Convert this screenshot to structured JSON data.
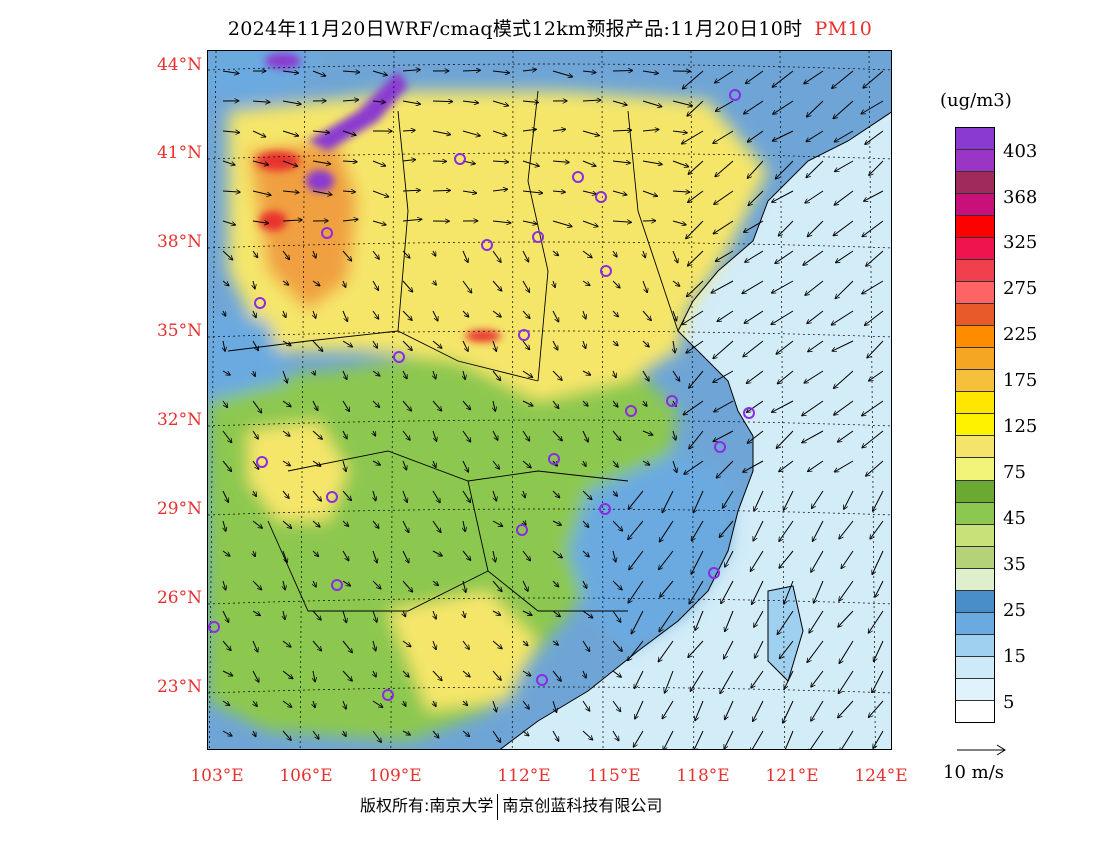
{
  "title": {
    "main": "2024年11月20日WRF/cmaq模式12km预报产品:11月20日10时",
    "pollutant": "PM10"
  },
  "map": {
    "lat_labels": [
      "44°N",
      "41°N",
      "38°N",
      "35°N",
      "32°N",
      "29°N",
      "26°N",
      "23°N"
    ],
    "lon_labels": [
      "103°E",
      "106°E",
      "109°E",
      "112°E",
      "115°E",
      "118°E",
      "121°E",
      "124°E"
    ],
    "colors": {
      "ocean": "#d2ecf8",
      "land_low": "#6fa5d6",
      "land_green": "#8cc850",
      "land_yellow": "#f5e66a",
      "polluted": "#f0a040",
      "severe": "#8a3ad0"
    },
    "station_marker_color": "#8b2be2"
  },
  "colorbar": {
    "unit": "(ug/m3)",
    "colors": [
      "#8a3ad0",
      "#9b35c5",
      "#a02b5a",
      "#c8107a",
      "#ff0000",
      "#f0144e",
      "#f0404e",
      "#ff6464",
      "#e85a2a",
      "#ff8c00",
      "#f5a623",
      "#f7c03a",
      "#ffe600",
      "#fff200",
      "#f4e46a",
      "#f2f47a",
      "#6aaa32",
      "#8cc850",
      "#c8e27a",
      "#b4d278",
      "#dfeecb",
      "#4a8ec8",
      "#6aaae0",
      "#a0d0f0",
      "#cdeaf8",
      "#e0f2fc",
      "#ffffff"
    ],
    "labels": [
      "403",
      "368",
      "325",
      "275",
      "225",
      "175",
      "125",
      "75",
      "45",
      "35",
      "25",
      "15",
      "5"
    ]
  },
  "wind_reference": "10 m/s",
  "copyright": {
    "prefix": "版权所有:南京大学",
    "org": "南京创蓝科技有限公司"
  }
}
